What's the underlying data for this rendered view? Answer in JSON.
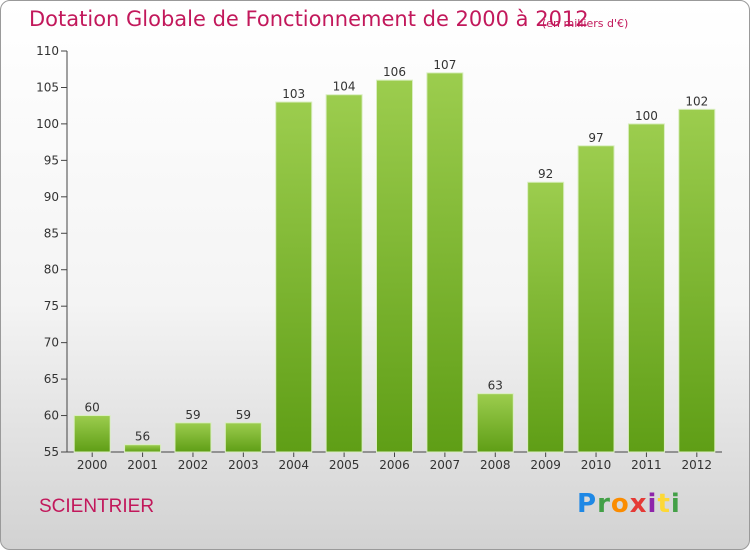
{
  "chart_data": {
    "type": "bar",
    "title": "Dotation Globale de Fonctionnement de 2000 à 2012",
    "unit_note": "(en milliers d'€)",
    "categories": [
      "2000",
      "2001",
      "2002",
      "2003",
      "2004",
      "2005",
      "2006",
      "2007",
      "2008",
      "2009",
      "2010",
      "2011",
      "2012"
    ],
    "values": [
      60,
      56,
      59,
      59,
      103,
      104,
      106,
      107,
      63,
      92,
      97,
      100,
      102
    ],
    "ylim": [
      55,
      110
    ],
    "yticks": [
      55,
      60,
      65,
      70,
      75,
      80,
      85,
      90,
      95,
      100,
      105,
      110
    ],
    "grid": false,
    "bar_color_light": "#9ccd4e",
    "bar_color_dark": "#5f9e16",
    "label_color": "#333333"
  },
  "footer": {
    "commune": "SCIENTRIER",
    "logo": "Proxiti"
  },
  "colors": {
    "accent": "#c2185b"
  }
}
